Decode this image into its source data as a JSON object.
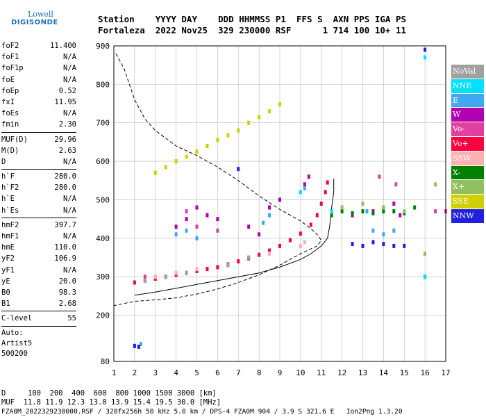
{
  "logo": {
    "line1": "Lowell",
    "line2": "DIGISONDE"
  },
  "header": {
    "line1": "Station    YYYY DAY    DDD HHMMSS P1  FFS S  AXN PPS IGA PS",
    "line2": "Fortaleza  2022 Nov25  329 230000 RSF      1 714 100 10+ 11"
  },
  "params": [
    {
      "name": "foF2",
      "value": "11.400"
    },
    {
      "name": "foF1",
      "value": "N/A"
    },
    {
      "name": "foF1p",
      "value": "N/A"
    },
    {
      "name": "foE",
      "value": "N/A"
    },
    {
      "name": "foEp",
      "value": "0.52"
    },
    {
      "name": "fxI",
      "value": "11.95"
    },
    {
      "name": "foEs",
      "value": "N/A"
    },
    {
      "name": "fmin",
      "value": "2.30"
    },
    {
      "sep": true
    },
    {
      "name": "MUF(D)",
      "value": "29.96"
    },
    {
      "name": "M(D)",
      "value": "2.63"
    },
    {
      "name": "D",
      "value": "N/A"
    },
    {
      "sep": true
    },
    {
      "name": "h`F",
      "value": "280.0"
    },
    {
      "name": "h`F2",
      "value": "280.0"
    },
    {
      "name": "h`E",
      "value": "N/A"
    },
    {
      "name": "h`Es",
      "value": "N/A"
    },
    {
      "sep": true
    },
    {
      "name": "hmF2",
      "value": "397.7"
    },
    {
      "name": "hmF1",
      "value": "N/A"
    },
    {
      "name": "hmE",
      "value": "110.0"
    },
    {
      "name": "yF2",
      "value": "106.9"
    },
    {
      "name": "yF1",
      "value": "N/A"
    },
    {
      "name": "yE",
      "value": "20.0"
    },
    {
      "name": "B0",
      "value": "98.3"
    },
    {
      "name": "B1",
      "value": "2.68"
    },
    {
      "sep": true
    },
    {
      "name": "C-level",
      "value": "55"
    },
    {
      "sep": true
    }
  ],
  "auto": {
    "line1": "Auto:",
    "line2": "Artist5",
    "line3": "500200"
  },
  "footer": {
    "line1": "D     100  200  400  600  800 1000 1500 3000 [km]",
    "line2": "MUF  11.8 11.9 12.3 13.0 13.9 15.4 19.5 30.0 [MHz]",
    "line3": "FZA0M_2022329230000.RSF / 320fx256h 50 kHz 5.0 km / DPS-4 FZA0M 904 / 3.9 S 321.6 E   Ion2Png 1.3.20"
  },
  "legend": [
    {
      "label": "NoVal",
      "color": "#a0a0a0"
    },
    {
      "label": "NNE",
      "color": "#00e0ff"
    },
    {
      "label": "E",
      "color": "#40a8f0"
    },
    {
      "label": "W",
      "color": "#b000b0"
    },
    {
      "label": "Vo-",
      "color": "#e040a0"
    },
    {
      "label": "Vo+",
      "color": "#ff0040"
    },
    {
      "label": "SSW",
      "color": "#ffb0b0"
    },
    {
      "label": "X-",
      "color": "#008000"
    },
    {
      "label": "X+",
      "color": "#90c060"
    },
    {
      "label": "SSE",
      "color": "#d0d000"
    },
    {
      "label": "NNW",
      "color": "#2020e0"
    }
  ],
  "chart_data": {
    "type": "scatter",
    "xlim": [
      1,
      17
    ],
    "ylim": [
      80,
      900
    ],
    "x_ticks": [
      "1",
      "2",
      "3",
      "4",
      "5",
      "6",
      "7",
      "8",
      "9",
      "10",
      "11",
      "12",
      "13",
      "14",
      "15",
      "16",
      "17"
    ],
    "y_ticks": [
      {
        "value": 80,
        "label": "80"
      },
      {
        "value": 200,
        "label": "200"
      },
      {
        "value": 300,
        "label": "300"
      },
      {
        "value": 400,
        "label": "400"
      },
      {
        "value": 500,
        "label": "500"
      },
      {
        "value": 600,
        "label": "600"
      },
      {
        "value": 700,
        "label": "700"
      },
      {
        "value": 800,
        "label": "800"
      },
      {
        "value": 900,
        "label": "900"
      }
    ],
    "grid": true,
    "series": [
      {
        "name": "Vo+",
        "color": "#ff0040",
        "points": [
          [
            2,
            285
          ],
          [
            2.5,
            290
          ],
          [
            3,
            295
          ],
          [
            3.5,
            300
          ],
          [
            4,
            305
          ],
          [
            4.5,
            310
          ],
          [
            5,
            315
          ],
          [
            5.5,
            320
          ],
          [
            6,
            325
          ],
          [
            6.5,
            332
          ],
          [
            7,
            340
          ],
          [
            7.5,
            348
          ],
          [
            8,
            357
          ],
          [
            8.5,
            368
          ],
          [
            9,
            380
          ],
          [
            9.5,
            395
          ],
          [
            10,
            412
          ],
          [
            10.5,
            435
          ],
          [
            10.8,
            460
          ],
          [
            11,
            490
          ],
          [
            11.2,
            520
          ],
          [
            11.3,
            545
          ]
        ]
      },
      {
        "name": "SSE",
        "color": "#d0d000",
        "points": [
          [
            3,
            570
          ],
          [
            3.5,
            585
          ],
          [
            4,
            600
          ],
          [
            4.5,
            612
          ],
          [
            5,
            625
          ],
          [
            5.5,
            640
          ],
          [
            6,
            655
          ],
          [
            6.5,
            668
          ],
          [
            7,
            680
          ],
          [
            7.5,
            700
          ],
          [
            8,
            715
          ],
          [
            8.5,
            730
          ],
          [
            9,
            748
          ]
        ]
      },
      {
        "name": "W",
        "color": "#b000b0",
        "points": [
          [
            4,
            430
          ],
          [
            4.5,
            450
          ],
          [
            5,
            480
          ],
          [
            5.5,
            460
          ],
          [
            6,
            450
          ],
          [
            7.5,
            430
          ],
          [
            8,
            410
          ],
          [
            8.5,
            480
          ],
          [
            9,
            500
          ],
          [
            12.5,
            460
          ],
          [
            13.5,
            470
          ],
          [
            14,
            480
          ],
          [
            14.5,
            490
          ],
          [
            14.8,
            460
          ],
          [
            10.2,
            540
          ],
          [
            10.4,
            560
          ]
        ]
      },
      {
        "name": "E",
        "color": "#40a8f0",
        "points": [
          [
            2,
            120
          ],
          [
            2.3,
            125
          ],
          [
            4,
            410
          ],
          [
            4.5,
            420
          ],
          [
            5,
            400
          ],
          [
            8.2,
            440
          ],
          [
            8.5,
            460
          ],
          [
            10.2,
            530
          ],
          [
            13.5,
            420
          ],
          [
            14,
            410
          ],
          [
            14.5,
            420
          ],
          [
            13.2,
            470
          ]
        ]
      },
      {
        "name": "X-",
        "color": "#008000",
        "points": [
          [
            11.5,
            460
          ],
          [
            12,
            470
          ],
          [
            12.5,
            465
          ],
          [
            13,
            470
          ],
          [
            13.5,
            465
          ],
          [
            14,
            470
          ],
          [
            14.5,
            470
          ],
          [
            15,
            465
          ],
          [
            15.5,
            480
          ],
          [
            16,
            300
          ]
        ]
      },
      {
        "name": "NNW",
        "color": "#2020e0",
        "points": [
          [
            2,
            120
          ],
          [
            2.2,
            118
          ],
          [
            12.5,
            385
          ],
          [
            13,
            380
          ],
          [
            13.5,
            390
          ],
          [
            14,
            385
          ],
          [
            14.5,
            380
          ],
          [
            15,
            380
          ],
          [
            7,
            580
          ],
          [
            16,
            890
          ]
        ]
      },
      {
        "name": "SSW",
        "color": "#ffb0b0",
        "points": [
          [
            3,
            300
          ],
          [
            4,
            310
          ],
          [
            5,
            320
          ],
          [
            10,
            380
          ],
          [
            10.2,
            390
          ],
          [
            8.5,
            360
          ]
        ]
      },
      {
        "name": "X+",
        "color": "#90c060",
        "points": [
          [
            12,
            480
          ],
          [
            13,
            490
          ],
          [
            14,
            480
          ],
          [
            15,
            470
          ],
          [
            16,
            360
          ],
          [
            16.5,
            540
          ]
        ]
      },
      {
        "name": "NNE",
        "color": "#00e0ff",
        "points": [
          [
            16,
            870
          ],
          [
            16,
            300
          ],
          [
            10,
            520
          ],
          [
            11.5,
            470
          ]
        ]
      },
      {
        "name": "Vo-",
        "color": "#e040a0",
        "points": [
          [
            2.5,
            300
          ],
          [
            4.5,
            470
          ],
          [
            5,
            430
          ],
          [
            6,
            420
          ],
          [
            13.8,
            560
          ],
          [
            14.6,
            540
          ],
          [
            16.5,
            470
          ],
          [
            17,
            470
          ]
        ]
      },
      {
        "name": "NoVal",
        "color": "#a0a0a0",
        "points": [
          [
            2.5,
            290
          ],
          [
            3.5,
            300
          ],
          [
            4.5,
            310
          ],
          [
            6.5,
            330
          ],
          [
            7.5,
            350
          ]
        ]
      }
    ],
    "curves": [
      {
        "style": "dashed",
        "points": [
          [
            1.1,
            880
          ],
          [
            1.5,
            840
          ],
          [
            2,
            760
          ],
          [
            2.5,
            710
          ],
          [
            3,
            680
          ],
          [
            3.5,
            660
          ],
          [
            4,
            640
          ],
          [
            5,
            615
          ],
          [
            6,
            585
          ],
          [
            7,
            550
          ],
          [
            8,
            510
          ],
          [
            9,
            475
          ],
          [
            10,
            445
          ],
          [
            10.5,
            425
          ],
          [
            10.8,
            410
          ],
          [
            11,
            395
          ],
          [
            10.8,
            380
          ],
          [
            10,
            360
          ],
          [
            9,
            330
          ],
          [
            8,
            305
          ],
          [
            7,
            285
          ],
          [
            6,
            268
          ],
          [
            5,
            255
          ],
          [
            4,
            245
          ],
          [
            3,
            240
          ],
          [
            2,
            236
          ],
          [
            1,
            225
          ]
        ]
      },
      {
        "style": "solid",
        "points": [
          [
            2,
            252
          ],
          [
            3,
            260
          ],
          [
            4,
            270
          ],
          [
            5,
            280
          ],
          [
            6,
            290
          ],
          [
            7,
            300
          ],
          [
            8,
            310
          ],
          [
            9,
            325
          ],
          [
            10,
            345
          ],
          [
            10.5,
            360
          ],
          [
            11,
            380
          ],
          [
            11.3,
            400
          ],
          [
            11.4,
            430
          ],
          [
            11.5,
            480
          ],
          [
            11.6,
            520
          ],
          [
            11.6,
            555
          ]
        ]
      }
    ]
  }
}
